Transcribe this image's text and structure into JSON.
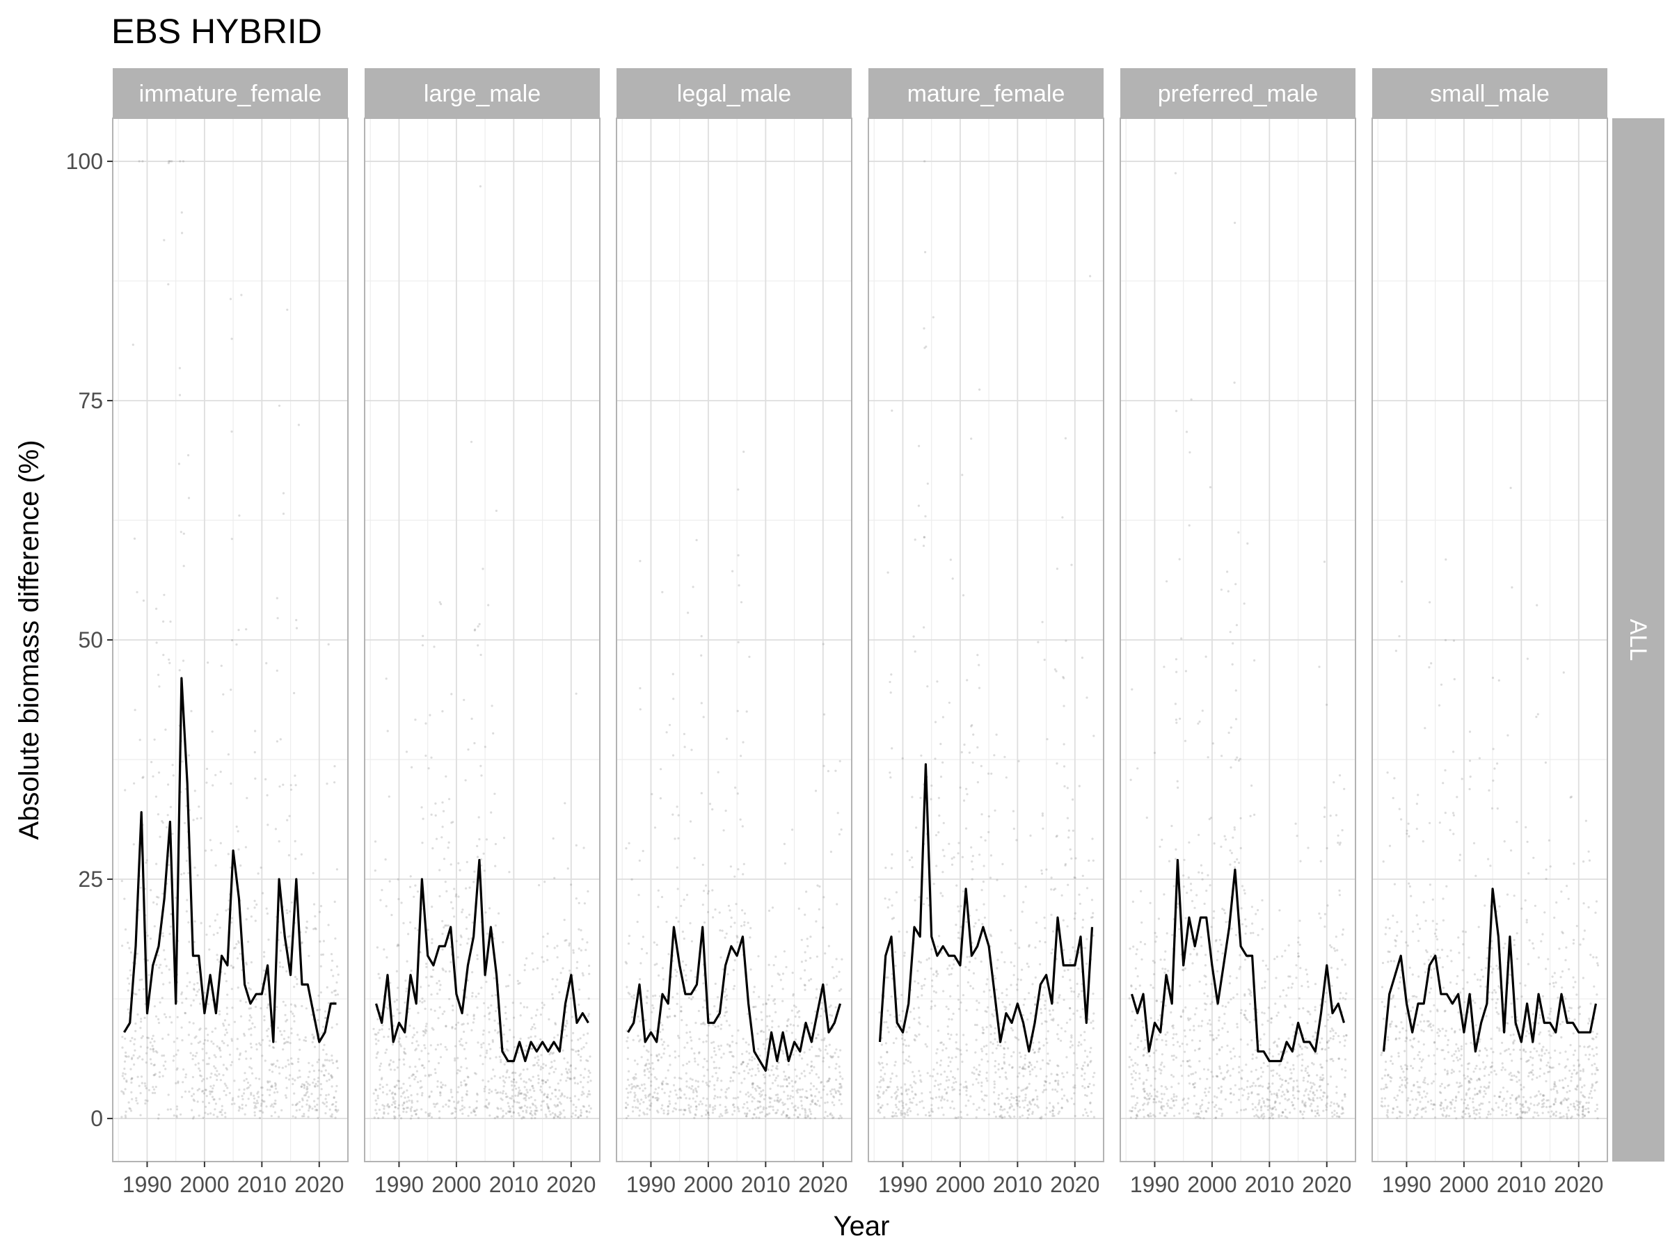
{
  "chart_data": {
    "type": "scatter+line",
    "title": "EBS HYBRID",
    "xlabel": "Year",
    "ylabel": "Absolute biomass difference (%)",
    "row_strip": "ALL",
    "xlim": [
      1984,
      2025
    ],
    "ylim": [
      -4.5,
      104.5
    ],
    "x_ticks": [
      1990,
      2000,
      2010,
      2020
    ],
    "x_tick_labels": [
      "1990",
      "2000",
      "2010",
      "2020"
    ],
    "y_ticks": [
      0,
      25,
      50,
      75,
      100
    ],
    "y_tick_labels": [
      "0",
      "25",
      "50",
      "75",
      "100"
    ],
    "grid": true,
    "colors": {
      "points": "#808080",
      "line": "#000000",
      "strip": "#b3b3b3",
      "grid": "#dedede",
      "border": "#b3b3b3"
    },
    "panels": [
      {
        "name": "immature_female",
        "x": [
          1986,
          1987,
          1988,
          1989,
          1990,
          1991,
          1992,
          1993,
          1994,
          1995,
          1996,
          1997,
          1998,
          1999,
          2000,
          2001,
          2002,
          2003,
          2004,
          2005,
          2006,
          2007,
          2008,
          2009,
          2010,
          2011,
          2012,
          2013,
          2014,
          2015,
          2016,
          2017,
          2018,
          2019,
          2020,
          2021,
          2022,
          2023
        ],
        "y": [
          9,
          10,
          18,
          32,
          11,
          16,
          18,
          23,
          31,
          12,
          46,
          35,
          17,
          17,
          11,
          15,
          11,
          17,
          16,
          28,
          23,
          14,
          12,
          13,
          13,
          16,
          8,
          25,
          19,
          15,
          25,
          14,
          14,
          11,
          8,
          9,
          12,
          12
        ]
      },
      {
        "name": "large_male",
        "x": [
          1986,
          1987,
          1988,
          1989,
          1990,
          1991,
          1992,
          1993,
          1994,
          1995,
          1996,
          1997,
          1998,
          1999,
          2000,
          2001,
          2002,
          2003,
          2004,
          2005,
          2006,
          2007,
          2008,
          2009,
          2010,
          2011,
          2012,
          2013,
          2014,
          2015,
          2016,
          2017,
          2018,
          2019,
          2020,
          2021,
          2022,
          2023
        ],
        "y": [
          12,
          10,
          15,
          8,
          10,
          9,
          15,
          12,
          25,
          17,
          16,
          18,
          18,
          20,
          13,
          11,
          16,
          19,
          27,
          15,
          20,
          15,
          7,
          6,
          6,
          8,
          6,
          8,
          7,
          8,
          7,
          8,
          7,
          12,
          15,
          10,
          11,
          10
        ]
      },
      {
        "name": "legal_male",
        "x": [
          1986,
          1987,
          1988,
          1989,
          1990,
          1991,
          1992,
          1993,
          1994,
          1995,
          1996,
          1997,
          1998,
          1999,
          2000,
          2001,
          2002,
          2003,
          2004,
          2005,
          2006,
          2007,
          2008,
          2009,
          2010,
          2011,
          2012,
          2013,
          2014,
          2015,
          2016,
          2017,
          2018,
          2019,
          2020,
          2021,
          2022,
          2023
        ],
        "y": [
          9,
          10,
          14,
          8,
          9,
          8,
          13,
          12,
          20,
          16,
          13,
          13,
          14,
          20,
          10,
          10,
          11,
          16,
          18,
          17,
          19,
          12,
          7,
          6,
          5,
          9,
          6,
          9,
          6,
          8,
          7,
          10,
          8,
          11,
          14,
          9,
          10,
          12
        ]
      },
      {
        "name": "mature_female",
        "x": [
          1986,
          1987,
          1988,
          1989,
          1990,
          1991,
          1992,
          1993,
          1994,
          1995,
          1996,
          1997,
          1998,
          1999,
          2000,
          2001,
          2002,
          2003,
          2004,
          2005,
          2006,
          2007,
          2008,
          2009,
          2010,
          2011,
          2012,
          2013,
          2014,
          2015,
          2016,
          2017,
          2018,
          2019,
          2020,
          2021,
          2022,
          2023
        ],
        "y": [
          8,
          17,
          19,
          10,
          9,
          12,
          20,
          19,
          37,
          19,
          17,
          18,
          17,
          17,
          16,
          24,
          17,
          18,
          20,
          18,
          13,
          8,
          11,
          10,
          12,
          10,
          7,
          10,
          14,
          15,
          12,
          21,
          16,
          16,
          16,
          19,
          10,
          20
        ]
      },
      {
        "name": "preferred_male",
        "x": [
          1986,
          1987,
          1988,
          1989,
          1990,
          1991,
          1992,
          1993,
          1994,
          1995,
          1996,
          1997,
          1998,
          1999,
          2000,
          2001,
          2002,
          2003,
          2004,
          2005,
          2006,
          2007,
          2008,
          2009,
          2010,
          2011,
          2012,
          2013,
          2014,
          2015,
          2016,
          2017,
          2018,
          2019,
          2020,
          2021,
          2022,
          2023
        ],
        "y": [
          13,
          11,
          13,
          7,
          10,
          9,
          15,
          12,
          27,
          16,
          21,
          18,
          21,
          21,
          16,
          12,
          16,
          20,
          26,
          18,
          17,
          17,
          7,
          7,
          6,
          6,
          6,
          8,
          7,
          10,
          8,
          8,
          7,
          11,
          16,
          11,
          12,
          10
        ]
      },
      {
        "name": "small_male",
        "x": [
          1986,
          1987,
          1988,
          1989,
          1990,
          1991,
          1992,
          1993,
          1994,
          1995,
          1996,
          1997,
          1998,
          1999,
          2000,
          2001,
          2002,
          2003,
          2004,
          2005,
          2006,
          2007,
          2008,
          2009,
          2010,
          2011,
          2012,
          2013,
          2014,
          2015,
          2016,
          2017,
          2018,
          2019,
          2020,
          2021,
          2022,
          2023
        ],
        "y": [
          7,
          13,
          15,
          17,
          12,
          9,
          12,
          12,
          16,
          17,
          13,
          13,
          12,
          13,
          9,
          13,
          7,
          10,
          12,
          24,
          19,
          9,
          19,
          10,
          8,
          12,
          8,
          13,
          10,
          10,
          9,
          13,
          10,
          10,
          9,
          9,
          9,
          12
        ]
      }
    ]
  }
}
